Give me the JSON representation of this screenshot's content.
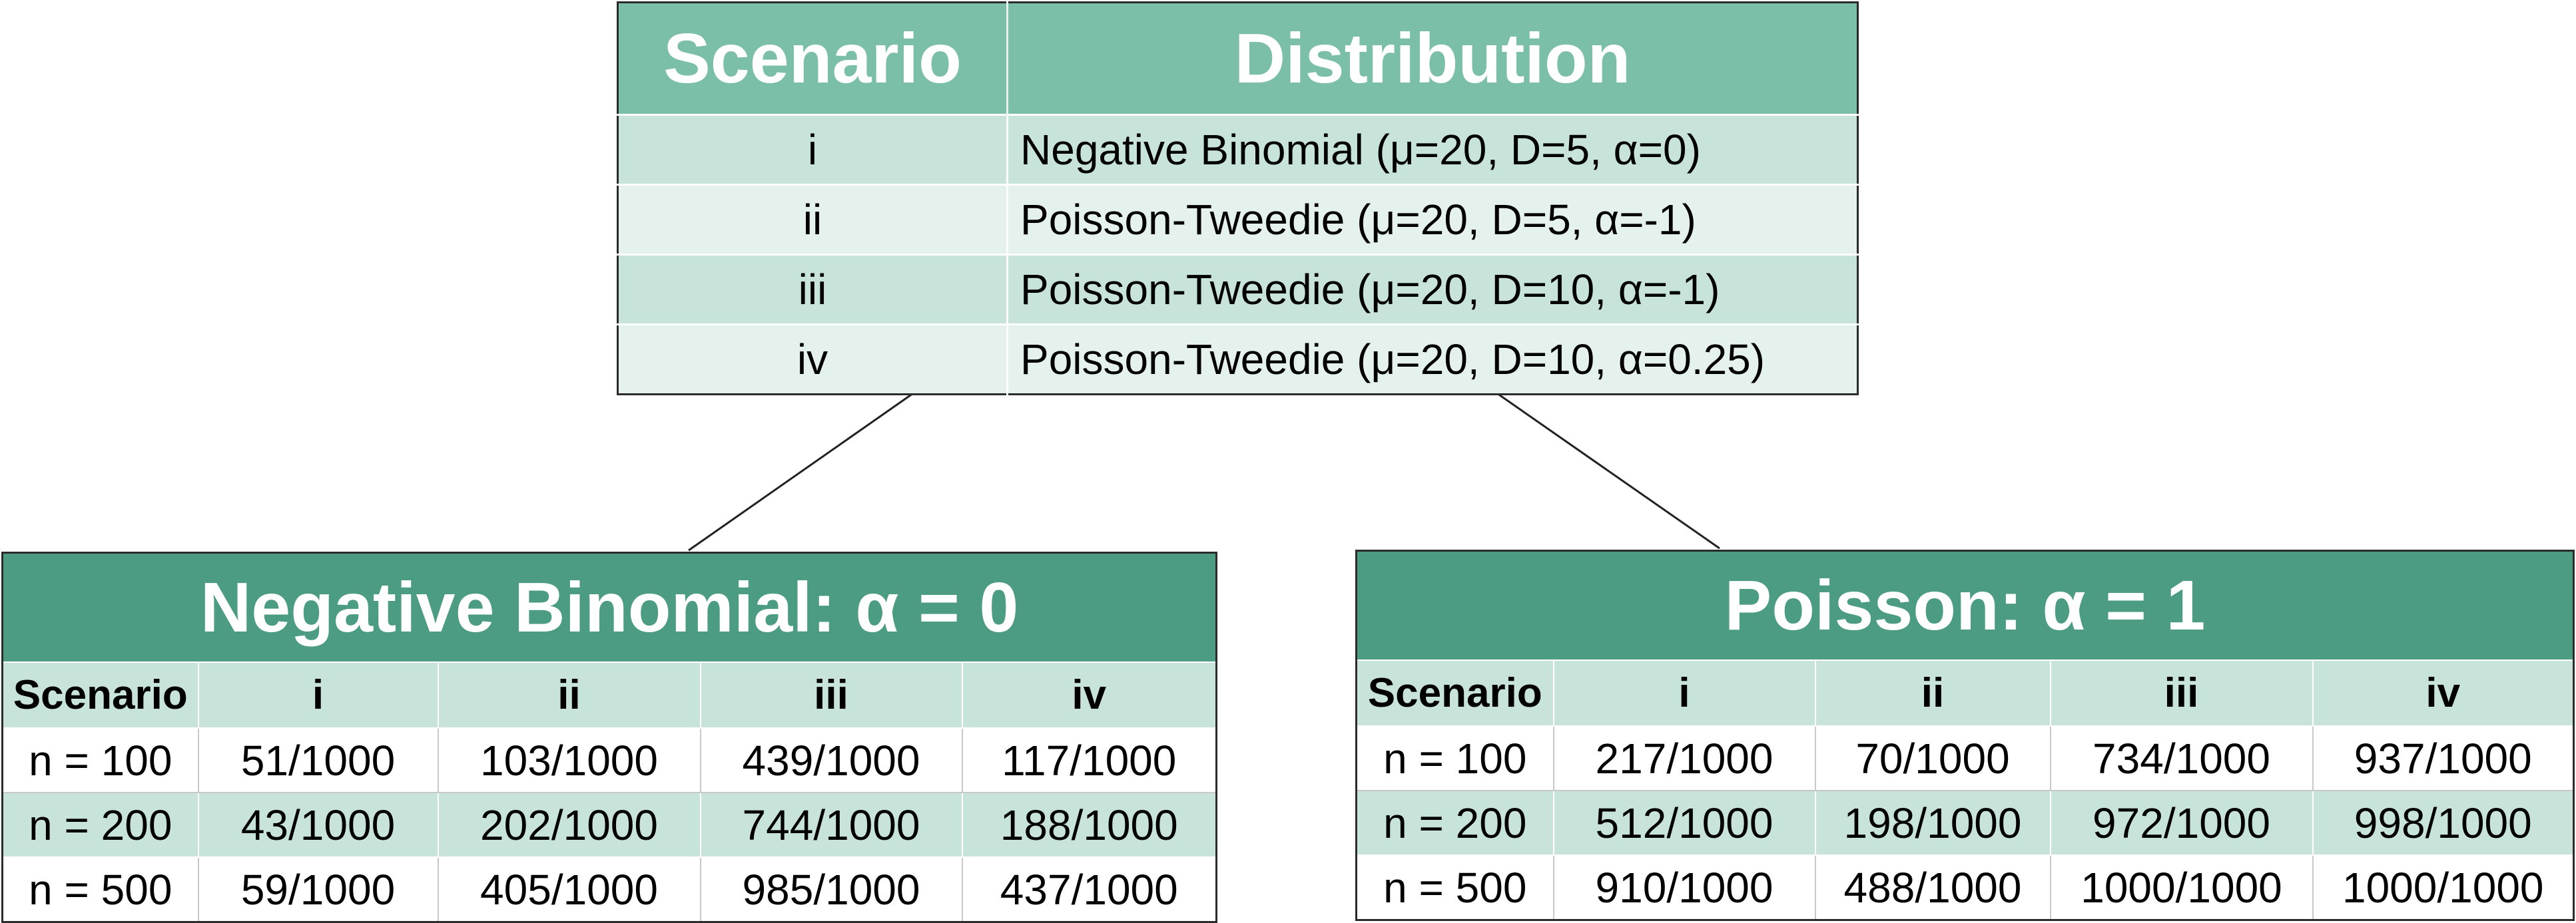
{
  "scenario_table": {
    "headers": [
      "Scenario",
      "Distribution"
    ],
    "rows": [
      {
        "scenario": "i",
        "distribution": "Negative Binomial (μ=20, D=5, α=0)"
      },
      {
        "scenario": "ii",
        "distribution": "Poisson-Tweedie (μ=20, D=5, α=-1)"
      },
      {
        "scenario": "iii",
        "distribution": "Poisson-Tweedie (μ=20, D=10, α=-1)"
      },
      {
        "scenario": "iv",
        "distribution": "Poisson-Tweedie (μ=20, D=10, α=0.25)"
      }
    ]
  },
  "negative_binomial_table": {
    "title": "Negative Binomial: α = 0",
    "columns": [
      "Scenario",
      "i",
      "ii",
      "iii",
      "iv"
    ],
    "rows": [
      {
        "n": "n = 100",
        "values": [
          "51/1000",
          "103/1000",
          "439/1000",
          "117/1000"
        ]
      },
      {
        "n": "n = 200",
        "values": [
          "43/1000",
          "202/1000",
          "744/1000",
          "188/1000"
        ]
      },
      {
        "n": "n = 500",
        "values": [
          "59/1000",
          "405/1000",
          "985/1000",
          "437/1000"
        ]
      }
    ]
  },
  "poisson_table": {
    "title": "Poisson: α = 1",
    "columns": [
      "Scenario",
      "i",
      "ii",
      "iii",
      "iv"
    ],
    "rows": [
      {
        "n": "n = 100",
        "values": [
          "217/1000",
          "70/1000",
          "734/1000",
          "937/1000"
        ]
      },
      {
        "n": "n = 200",
        "values": [
          "512/1000",
          "198/1000",
          "972/1000",
          "998/1000"
        ]
      },
      {
        "n": "n = 500",
        "values": [
          "910/1000",
          "488/1000",
          "1000/1000",
          "1000/1000"
        ]
      }
    ]
  },
  "colors": {
    "top_header": "#7bbfa9",
    "result_title": "#4b9c82",
    "row_dark": "#c7e3da",
    "row_light": "#e4f1ed"
  }
}
